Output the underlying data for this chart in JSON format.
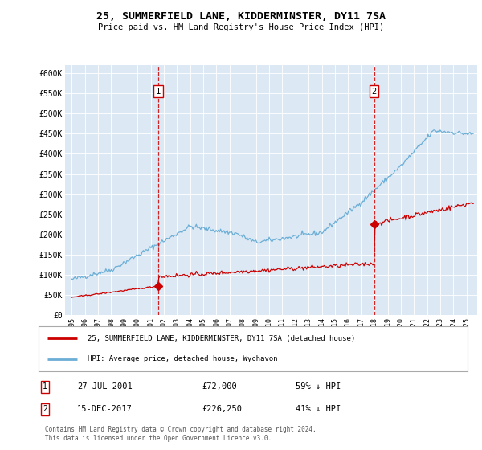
{
  "title": "25, SUMMERFIELD LANE, KIDDERMINSTER, DY11 7SA",
  "subtitle": "Price paid vs. HM Land Registry's House Price Index (HPI)",
  "background_color": "#dce9f5",
  "plot_bg_color": "#dce9f5",
  "ylim": [
    0,
    620000
  ],
  "yticks": [
    0,
    50000,
    100000,
    150000,
    200000,
    250000,
    300000,
    350000,
    400000,
    450000,
    500000,
    550000,
    600000
  ],
  "ytick_labels": [
    "£0",
    "£50K",
    "£100K",
    "£150K",
    "£200K",
    "£250K",
    "£300K",
    "£350K",
    "£400K",
    "£450K",
    "£500K",
    "£550K",
    "£600K"
  ],
  "sale1_date": 2001.57,
  "sale1_price": 72000,
  "sale1_label": "1",
  "sale1_text": "27-JUL-2001",
  "sale1_amount": "£72,000",
  "sale1_pct": "59% ↓ HPI",
  "sale2_date": 2017.96,
  "sale2_price": 226250,
  "sale2_label": "2",
  "sale2_text": "15-DEC-2017",
  "sale2_amount": "£226,250",
  "sale2_pct": "41% ↓ HPI",
  "legend_line1": "25, SUMMERFIELD LANE, KIDDERMINSTER, DY11 7SA (detached house)",
  "legend_line2": "HPI: Average price, detached house, Wychavon",
  "footer": "Contains HM Land Registry data © Crown copyright and database right 2024.\nThis data is licensed under the Open Government Licence v3.0.",
  "hpi_color": "#6baed6",
  "price_color": "#cc0000",
  "vline_color": "#cc0000",
  "dot_color": "#cc0000",
  "xlim_left": 1994.5,
  "xlim_right": 2025.8
}
